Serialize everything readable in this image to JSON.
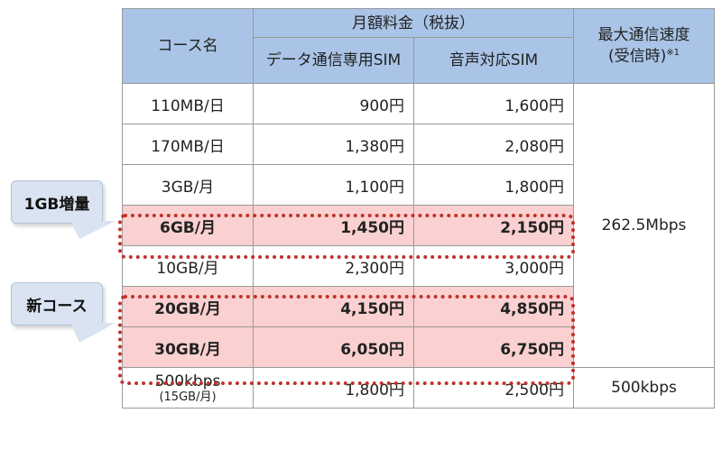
{
  "header": {
    "course": "コース名",
    "monthly_fee": "月額料金（税抜）",
    "data_sim": "データ通信専用SIM",
    "voice_sim": "音声対応SIM",
    "max_speed_line1": "最大通信速度",
    "max_speed_line2": "(受信時)",
    "max_speed_note": "※1"
  },
  "rows": [
    {
      "course": "110MB/日",
      "data": "900円",
      "voice": "1,600円"
    },
    {
      "course": "170MB/日",
      "data": "1,380円",
      "voice": "2,080円"
    },
    {
      "course": "3GB/月",
      "data": "1,100円",
      "voice": "1,800円"
    },
    {
      "course": "6GB/月",
      "data": "1,450円",
      "voice": "2,150円"
    },
    {
      "course": "10GB/月",
      "data": "2,300円",
      "voice": "3,000円"
    },
    {
      "course": "20GB/月",
      "data": "4,150円",
      "voice": "4,850円"
    },
    {
      "course": "30GB/月",
      "data": "6,050円",
      "voice": "6,750円"
    },
    {
      "course": "500kbps",
      "course_sub": "(15GB/月)",
      "data": "1,800円",
      "voice": "2,500円"
    }
  ],
  "speed_main": "262.5Mbps",
  "speed_low": "500kbps",
  "callouts": {
    "increase": "1GB増量",
    "new_course": "新コース"
  },
  "colors": {
    "header_bg": "#a9c4e6",
    "highlight_bg": "#fbd0d0",
    "dotted_border": "#c0312b",
    "callout_bg": "#d9e3f1"
  }
}
